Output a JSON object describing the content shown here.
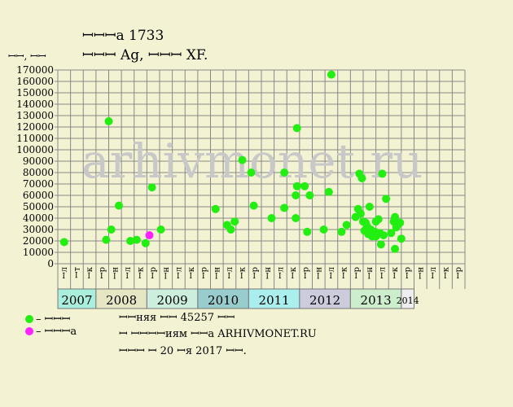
{
  "header": {
    "title": "ꟷꟷꟷa 1733",
    "subtitle": "ꟷꟷꟷ Ag, ꟷꟷꟷ XF.",
    "unit": "ꟷꟷ, ꟷꟷ"
  },
  "watermark": "arhivmonet.ru",
  "legend": [
    {
      "label": "– ꟷꟷꟷ",
      "color": "#22ee11"
    },
    {
      "label": "– ꟷꟷꟷa",
      "color": "#ff22ff"
    }
  ],
  "footer": {
    "line1": "ꟷꟷняя ꟷꟷ 45257 ꟷꟷ",
    "line2": "ꟷ ꟷꟷꟷꟷиям ꟷꟷa ARHIVMONET.RU",
    "line3": "ꟷꟷꟷ ꟷ 20 ꟷя 2017 ꟷꟷ."
  },
  "colors": {
    "background": "#f3f3d3",
    "grid": "#888888",
    "point_green": "#22ee11",
    "point_magenta": "#ff22ff",
    "year_teal": "#aaeedd",
    "year_beige": "#e6e6c4",
    "year_mint": "#cceedd",
    "year_darkteal": "#99cccc",
    "year_cyan": "#aaeeee",
    "year_lavender": "#ccccdd",
    "year_green": "#cceecc",
    "year_white": "#eeeeee"
  },
  "chart_data": {
    "type": "scatter",
    "ylim": [
      0,
      170000
    ],
    "yticks": [
      0,
      10000,
      20000,
      30000,
      40000,
      50000,
      60000,
      70000,
      80000,
      90000,
      100000,
      110000,
      120000,
      130000,
      140000,
      150000,
      160000,
      170000
    ],
    "x_categories": [
      "ꟷл",
      "ꟷт",
      "ꟷк",
      "ꟷр",
      "ꟷн",
      "ꟷл",
      "ꟷк",
      "ꟷр",
      "ꟷн",
      "ꟷл",
      "ꟷк",
      "ꟷр",
      "ꟷн",
      "ꟷл",
      "ꟷк",
      "ꟷр",
      "ꟷн",
      "ꟷл",
      "ꟷк",
      "ꟷр",
      "ꟷн",
      "ꟷл",
      "ꟷк",
      "ꟷр",
      "ꟷн",
      "ꟷл",
      "ꟷк",
      "ꟷр",
      "ꟷн",
      "ꟷл",
      "ꟷк",
      "ꟷр"
    ],
    "years": [
      {
        "label": "2007",
        "start": 0,
        "count": 3,
        "color": "year_teal"
      },
      {
        "label": "2008",
        "start": 3,
        "count": 4,
        "color": "year_beige"
      },
      {
        "label": "2009",
        "start": 7,
        "count": 4,
        "color": "year_mint"
      },
      {
        "label": "2010",
        "start": 11,
        "count": 4,
        "color": "year_darkteal"
      },
      {
        "label": "2011",
        "start": 15,
        "count": 4,
        "color": "year_cyan"
      },
      {
        "label": "2012",
        "start": 19,
        "count": 4,
        "color": "year_lavender"
      },
      {
        "label": "2013",
        "start": 23,
        "count": 4,
        "color": "year_green"
      },
      {
        "label": "2014",
        "start": 27,
        "count": 1,
        "color": "year_white"
      }
    ],
    "series": [
      {
        "color": "point_green",
        "points": [
          [
            0.5,
            19000
          ],
          [
            3.8,
            21000
          ],
          [
            4.0,
            125000
          ],
          [
            4.2,
            30000
          ],
          [
            4.8,
            51000
          ],
          [
            5.7,
            20000
          ],
          [
            6.2,
            21000
          ],
          [
            6.9,
            18000
          ],
          [
            7.4,
            67000
          ],
          [
            8.1,
            30000
          ],
          [
            12.4,
            48000
          ],
          [
            13.3,
            34000
          ],
          [
            13.6,
            30000
          ],
          [
            13.9,
            37000
          ],
          [
            14.5,
            91000
          ],
          [
            15.2,
            80000
          ],
          [
            15.4,
            51000
          ],
          [
            16.8,
            40000
          ],
          [
            17.8,
            49000
          ],
          [
            17.8,
            80000
          ],
          [
            18.7,
            40000
          ],
          [
            18.7,
            60000
          ],
          [
            18.8,
            68000
          ],
          [
            18.8,
            119000
          ],
          [
            19.4,
            68000
          ],
          [
            19.6,
            28000
          ],
          [
            19.8,
            60000
          ],
          [
            20.9,
            30000
          ],
          [
            21.3,
            63000
          ],
          [
            21.5,
            166000
          ],
          [
            22.3,
            28000
          ],
          [
            22.7,
            34000
          ],
          [
            23.4,
            41000
          ],
          [
            23.6,
            48000
          ],
          [
            23.7,
            79000
          ],
          [
            23.8,
            44000
          ],
          [
            23.9,
            75000
          ],
          [
            24.0,
            37000
          ],
          [
            24.1,
            29000
          ],
          [
            24.2,
            36000
          ],
          [
            24.3,
            33000
          ],
          [
            24.4,
            26000
          ],
          [
            24.5,
            50000
          ],
          [
            24.6,
            30000
          ],
          [
            24.7,
            24000
          ],
          [
            24.9,
            28000
          ],
          [
            25.0,
            37000
          ],
          [
            25.0,
            24000
          ],
          [
            25.2,
            39000
          ],
          [
            25.3,
            27000
          ],
          [
            25.4,
            17000
          ],
          [
            25.5,
            79000
          ],
          [
            25.6,
            25000
          ],
          [
            25.8,
            57000
          ],
          [
            26.2,
            27000
          ],
          [
            26.4,
            37000
          ],
          [
            26.5,
            41000
          ],
          [
            26.5,
            13000
          ],
          [
            26.6,
            32000
          ],
          [
            26.7,
            34000
          ],
          [
            26.9,
            36000
          ],
          [
            27.0,
            22000
          ]
        ]
      },
      {
        "color": "point_magenta",
        "points": [
          [
            7.2,
            25000
          ]
        ]
      }
    ]
  }
}
